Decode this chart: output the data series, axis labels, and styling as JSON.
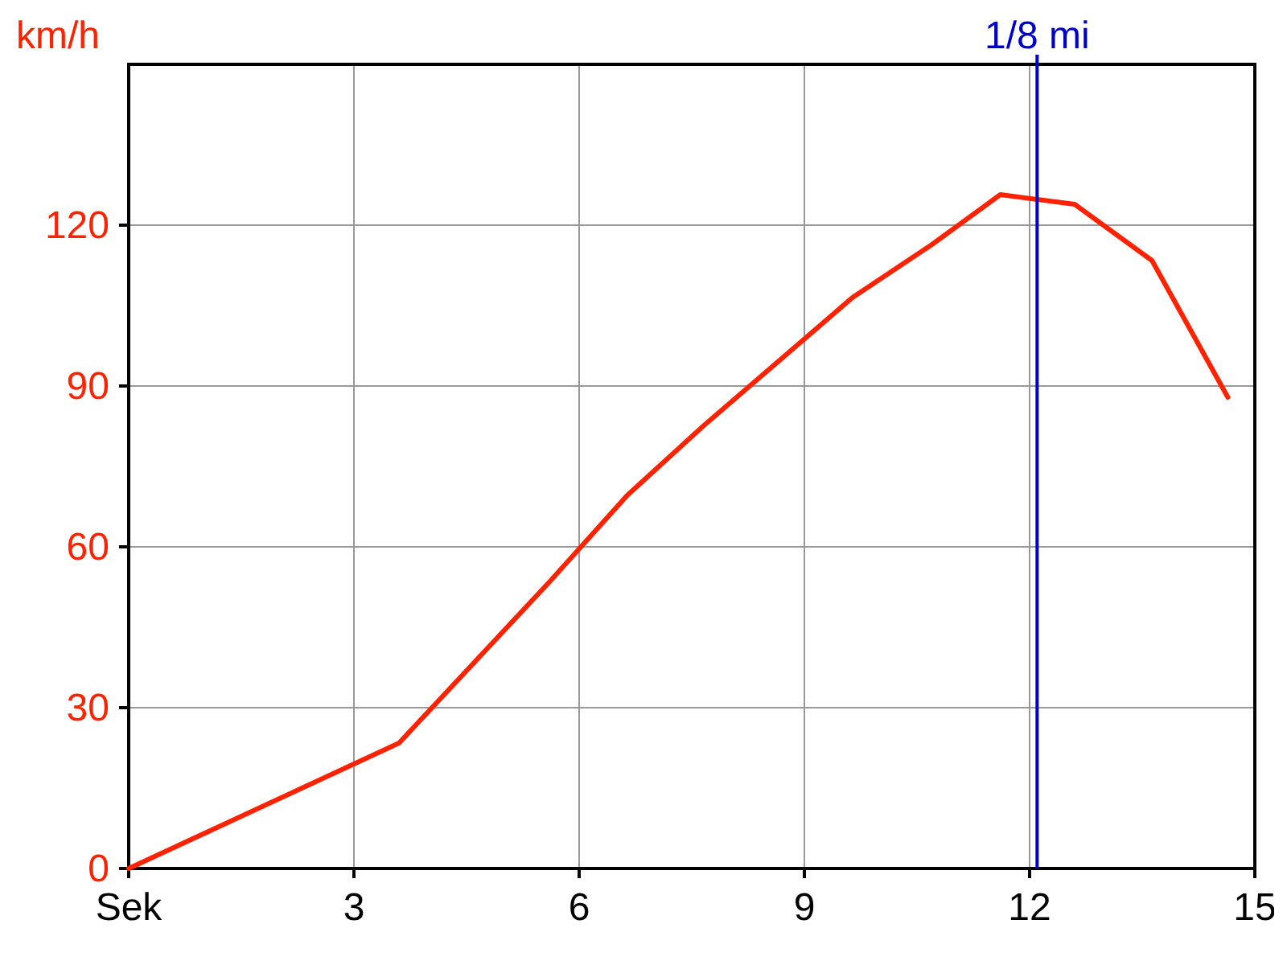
{
  "chart_data": {
    "type": "line",
    "ylabel": "km/h",
    "x": [
      0,
      3.6,
      5.6,
      6.64,
      7.65,
      9.64,
      10.7,
      11.61,
      12.6,
      13.63,
      14.64
    ],
    "series": [
      {
        "color": "#ff2200",
        "values": [
          0,
          23.4,
          53.4,
          69.6,
          82.5,
          106.5,
          116.4,
          125.7,
          123.9,
          113.4,
          87.9
        ]
      }
    ],
    "xlim": [
      0,
      15
    ],
    "xticks": [
      {
        "value": 0,
        "label": "Sek"
      },
      3,
      6,
      9,
      12,
      15
    ],
    "ylim": [
      0,
      150
    ],
    "yticks": [
      0,
      30,
      60,
      90,
      120
    ],
    "grid": true,
    "marker": "none",
    "line_style": "solid",
    "ref_lines": [
      {
        "axis": "x",
        "value": 12.1,
        "label": "1/8 mi",
        "color": "#0000cc"
      }
    ]
  }
}
